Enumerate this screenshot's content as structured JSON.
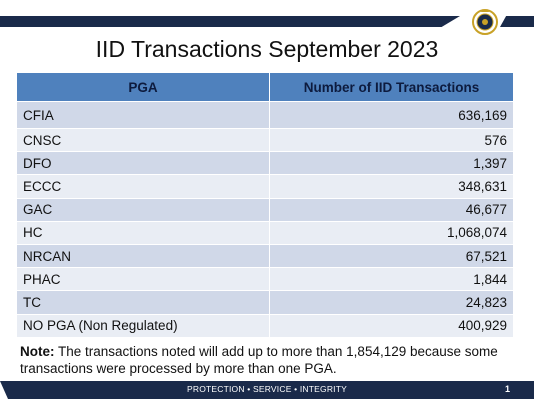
{
  "title": "IID Transactions September 2023",
  "table": {
    "headers": [
      "PGA",
      "Number of IID Transactions"
    ],
    "rows": [
      {
        "pga": "CFIA",
        "count": "636,169"
      },
      {
        "pga": "CNSC",
        "count": "576"
      },
      {
        "pga": "DFO",
        "count": "1,397"
      },
      {
        "pga": "ECCC",
        "count": "348,631"
      },
      {
        "pga": "GAC",
        "count": "46,677"
      },
      {
        "pga": "HC",
        "count": "1,068,074"
      },
      {
        "pga": "NRCAN",
        "count": "67,521"
      },
      {
        "pga": "PHAC",
        "count": "1,844"
      },
      {
        "pga": "TC",
        "count": "24,823"
      },
      {
        "pga": "NO PGA (Non Regulated)",
        "count": "400,929"
      }
    ]
  },
  "note": {
    "label": "Note:",
    "text": " The transactions noted will add up to more than 1,854,129 because some transactions were processed by more than one PGA."
  },
  "footer": {
    "motto": "PROTECTION • SERVICE • INTEGRITY",
    "page_number": "1"
  },
  "logo_icon": "agency-crest-icon",
  "colors": {
    "band": "#1a2a4a",
    "header": "#4f81bd",
    "row_odd": "#d0d8e8",
    "row_even": "#e9edf4"
  }
}
